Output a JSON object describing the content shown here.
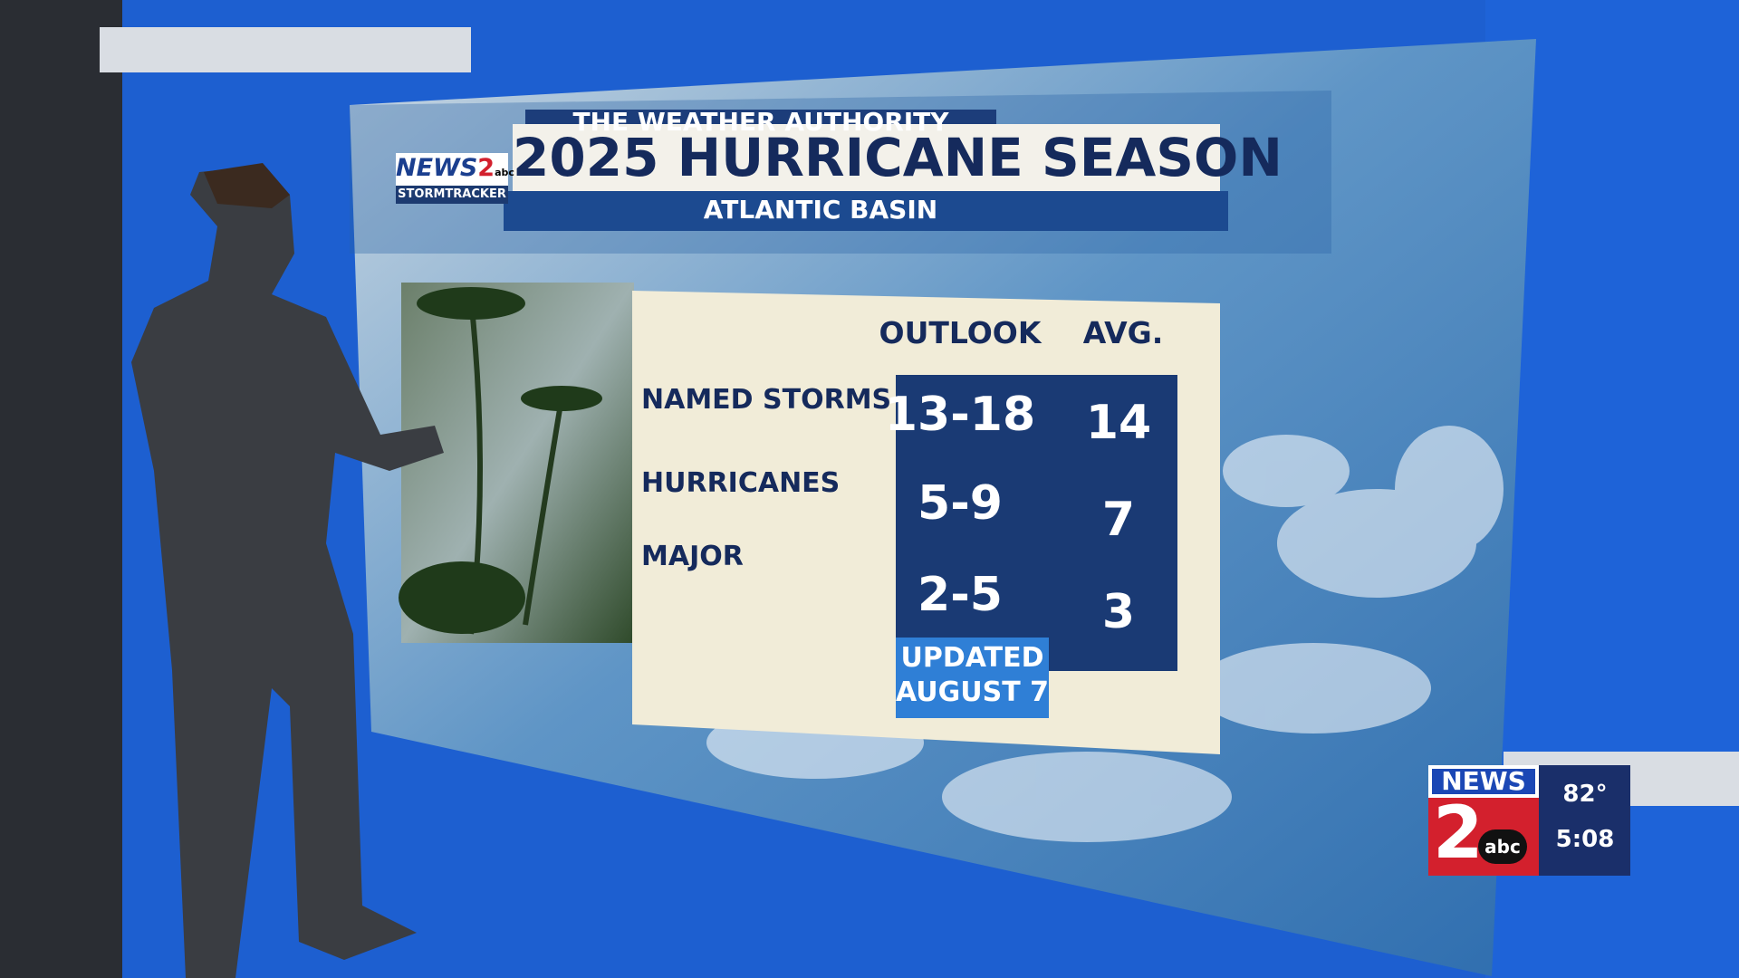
{
  "logo": {
    "brand": "NEWS",
    "channel": "2",
    "network": "abc",
    "tagline": "STORMTRACKER"
  },
  "header": {
    "kicker": "THE WEATHER AUTHORITY",
    "title": "2025 HURRICANE SEASON",
    "subtitle": "ATLANTIC BASIN"
  },
  "table": {
    "columns": [
      "OUTLOOK",
      "AVG."
    ],
    "rows": [
      [
        "NAMED STORMS",
        "13-18",
        14
      ],
      [
        "HURRICANES",
        "5-9",
        7
      ],
      [
        "MAJOR",
        "2-5",
        3
      ]
    ]
  },
  "note": [
    "UPDATED",
    "AUGUST 7"
  ],
  "bug": {
    "brand": "NEWS",
    "channel": "2",
    "network": "abc",
    "temperature": "82°",
    "time": "5:08"
  }
}
